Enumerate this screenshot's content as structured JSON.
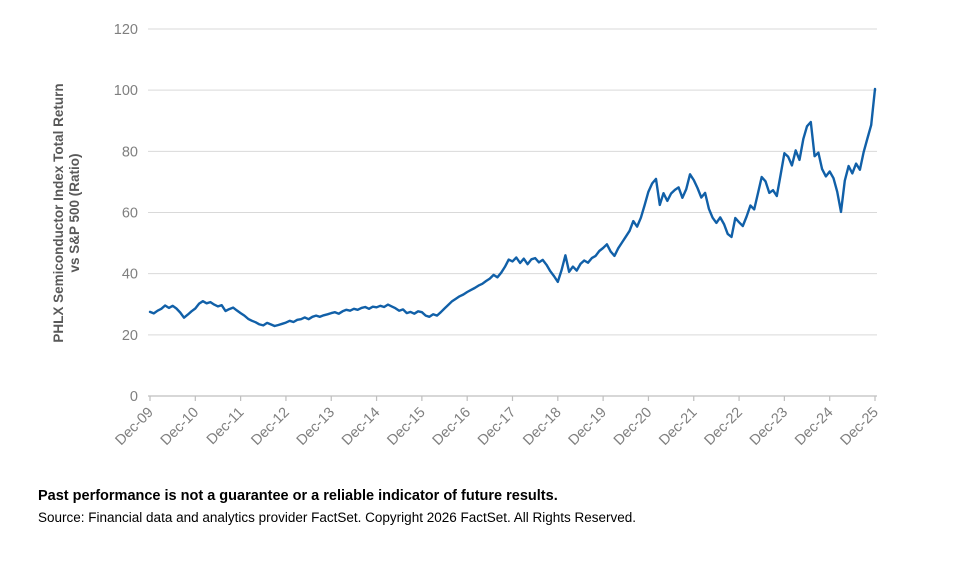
{
  "chart_data": {
    "type": "line",
    "title": "",
    "ylabel_line1": "PHLX Semiconductor Index Total Return",
    "ylabel_line2": "vs S&P 500 (Ratio)",
    "xlabel": "",
    "ylim": [
      0,
      120
    ],
    "yticks": [
      0,
      20,
      40,
      60,
      80,
      100,
      120
    ],
    "xticklabels": [
      "Dec-09",
      "Dec-10",
      "Dec-11",
      "Dec-12",
      "Dec-13",
      "Dec-14",
      "Dec-15",
      "Dec-16",
      "Dec-17",
      "Dec-18",
      "Dec-19",
      "Dec-20",
      "Dec-21",
      "Dec-22",
      "Dec-23",
      "Dec-24",
      "Dec-25"
    ],
    "grid": "horizontal-only",
    "legend": "none",
    "line_color": "#1160a8",
    "series": [
      {
        "name": "PHLX Semiconductor Index Total Return vs S&P 500 (Ratio)",
        "x_start": "Dec-09",
        "x_interval": "monthly",
        "values": [
          27.5,
          27.0,
          27.9,
          28.5,
          29.6,
          28.8,
          29.5,
          28.6,
          27.3,
          25.6,
          26.6,
          27.7,
          28.6,
          30.2,
          31.0,
          30.3,
          30.7,
          29.9,
          29.3,
          29.7,
          27.8,
          28.4,
          28.9,
          28.0,
          27.1,
          26.3,
          25.2,
          24.6,
          24.1,
          23.4,
          23.1,
          23.9,
          23.4,
          22.9,
          23.2,
          23.6,
          24.0,
          24.6,
          24.2,
          24.9,
          25.1,
          25.7,
          25.1,
          25.9,
          26.3,
          25.9,
          26.4,
          26.7,
          27.1,
          27.4,
          26.9,
          27.7,
          28.2,
          27.9,
          28.5,
          28.2,
          28.8,
          29.1,
          28.5,
          29.2,
          29.0,
          29.5,
          29.1,
          29.9,
          29.3,
          28.7,
          27.9,
          28.3,
          27.1,
          27.5,
          26.9,
          27.7,
          27.4,
          26.3,
          25.9,
          26.7,
          26.3,
          27.4,
          28.6,
          29.8,
          31.0,
          31.8,
          32.6,
          33.2,
          34.0,
          34.7,
          35.3,
          36.1,
          36.7,
          37.6,
          38.4,
          39.6,
          38.8,
          40.3,
          42.2,
          44.6,
          44.0,
          45.3,
          43.5,
          44.9,
          43.1,
          44.7,
          45.1,
          43.7,
          44.5,
          42.9,
          40.8,
          39.2,
          37.3,
          41.2,
          46.0,
          40.6,
          42.3,
          41.0,
          43.2,
          44.3,
          43.6,
          45.1,
          45.8,
          47.4,
          48.4,
          49.6,
          47.2,
          45.8,
          48.3,
          50.2,
          52.1,
          54.0,
          57.2,
          55.4,
          58.3,
          62.5,
          66.8,
          69.5,
          71.0,
          62.5,
          66.3,
          63.8,
          66.2,
          67.4,
          68.2,
          64.8,
          67.6,
          72.5,
          70.6,
          68.0,
          64.9,
          66.4,
          61.2,
          58.3,
          56.6,
          58.4,
          56.2,
          53.0,
          52.0,
          58.2,
          56.8,
          55.6,
          58.7,
          62.3,
          61.0,
          66.2,
          71.6,
          70.2,
          66.4,
          67.3,
          65.4,
          72.3,
          79.4,
          78.2,
          75.4,
          80.3,
          77.2,
          84.0,
          88.2,
          89.6,
          78.4,
          79.6,
          74.2,
          71.8,
          73.4,
          71.2,
          66.8,
          60.2,
          70.4,
          75.2,
          72.8,
          76.0,
          74.0,
          79.8,
          84.2,
          88.6,
          100.4
        ]
      }
    ]
  },
  "styles": {
    "gridline_color": "#d9d9d9",
    "axis_line_color": "#bfbfbf",
    "tick_label_color": "#7f7f7f",
    "axis_title_color": "#595959",
    "background": "#ffffff"
  },
  "footer": {
    "disclaimer": "Past performance is not a guarantee or a reliable indicator of future results.",
    "source": "Source: Financial data and analytics provider FactSet. Copyright 2026 FactSet. All Rights Reserved."
  }
}
